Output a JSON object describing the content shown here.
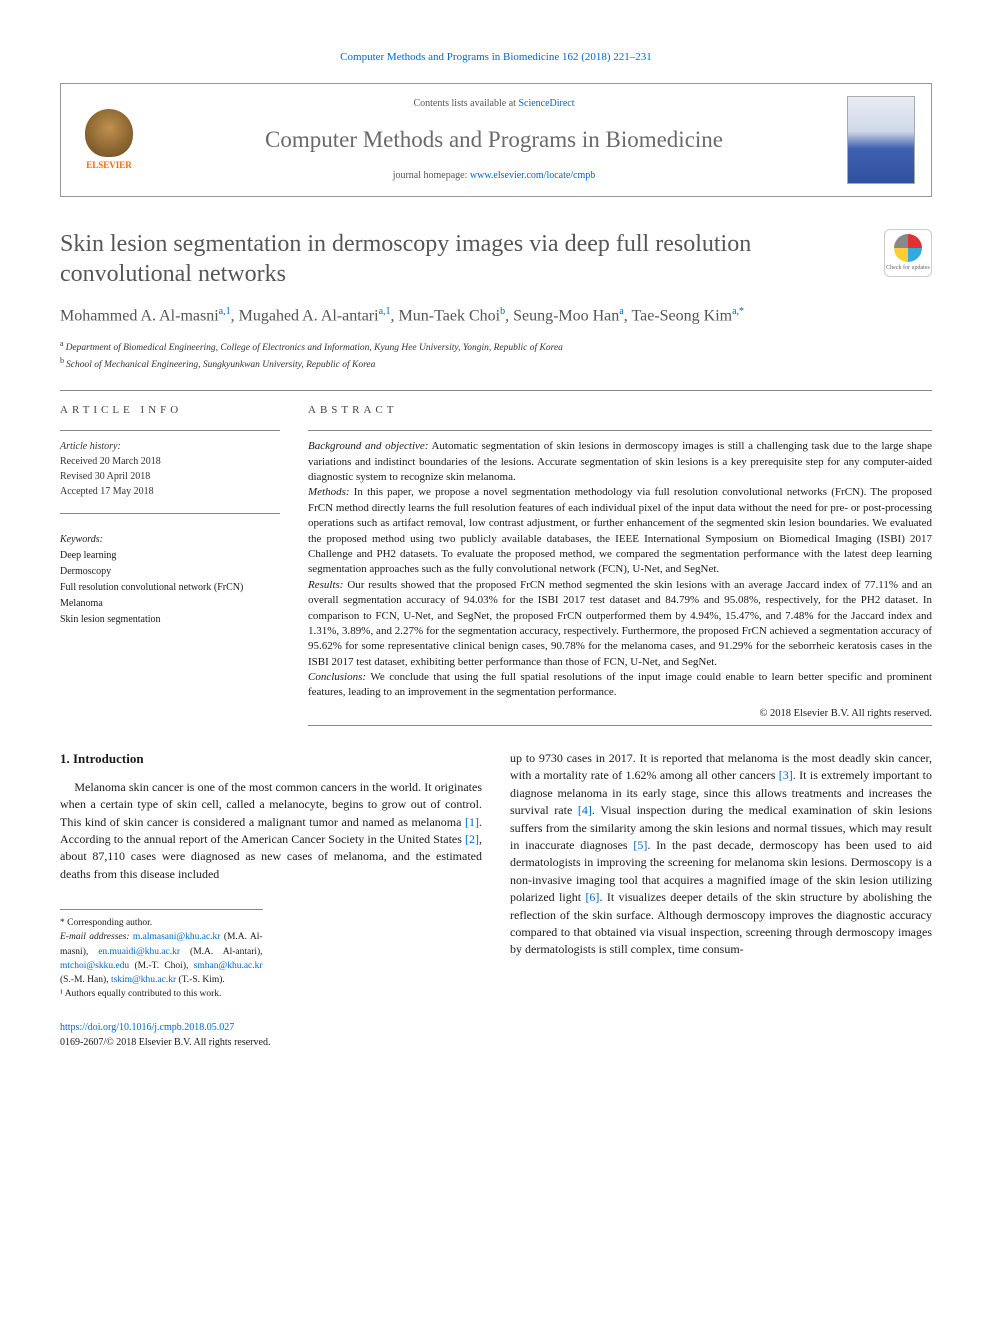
{
  "journal_ref": "Computer Methods and Programs in Biomedicine 162 (2018) 221–231",
  "header": {
    "contents_prefix": "Contents lists available at ",
    "contents_link": "ScienceDirect",
    "journal_name": "Computer Methods and Programs in Biomedicine",
    "homepage_prefix": "journal homepage: ",
    "homepage_link": "www.elsevier.com/locate/cmpb",
    "elsevier_label": "ELSEVIER"
  },
  "title": "Skin lesion segmentation in dermoscopy images via deep full resolution convolutional networks",
  "crossmark_label": "Check for updates",
  "authors_html": "Mohammed A. Al-masni|a,1|, Mugahed A. Al-antari|a,1|, Mun-Taek Choi|b|, Seung-Moo Han|a|, Tae-Seong Kim|a,*|",
  "authors": [
    {
      "name": "Mohammed A. Al-masni",
      "sup": "a,1"
    },
    {
      "name": "Mugahed A. Al-antari",
      "sup": "a,1"
    },
    {
      "name": "Mun-Taek Choi",
      "sup": "b"
    },
    {
      "name": "Seung-Moo Han",
      "sup": "a"
    },
    {
      "name": "Tae-Seong Kim",
      "sup": "a,*"
    }
  ],
  "affiliations": [
    {
      "sup": "a",
      "text": "Department of Biomedical Engineering, College of Electronics and Information, Kyung Hee University, Yongin, Republic of Korea"
    },
    {
      "sup": "b",
      "text": "School of Mechanical Engineering, Sungkyunkwan University, Republic of Korea"
    }
  ],
  "article_info": {
    "header": "ARTICLE INFO",
    "history_label": "Article history:",
    "received": "Received 20 March 2018",
    "revised": "Revised 30 April 2018",
    "accepted": "Accepted 17 May 2018",
    "keywords_label": "Keywords:",
    "keywords": [
      "Deep learning",
      "Dermoscopy",
      "Full resolution convolutional network (FrCN)",
      "Melanoma",
      "Skin lesion segmentation"
    ]
  },
  "abstract": {
    "header": "ABSTRACT",
    "background_label": "Background and objective:",
    "background": "Automatic segmentation of skin lesions in dermoscopy images is still a challenging task due to the large shape variations and indistinct boundaries of the lesions. Accurate segmentation of skin lesions is a key prerequisite step for any computer-aided diagnostic system to recognize skin melanoma.",
    "methods_label": "Methods:",
    "methods": "In this paper, we propose a novel segmentation methodology via full resolution convolutional networks (FrCN). The proposed FrCN method directly learns the full resolution features of each individual pixel of the input data without the need for pre- or post-processing operations such as artifact removal, low contrast adjustment, or further enhancement of the segmented skin lesion boundaries. We evaluated the proposed method using two publicly available databases, the IEEE International Symposium on Biomedical Imaging (ISBI) 2017 Challenge and PH2 datasets. To evaluate the proposed method, we compared the segmentation performance with the latest deep learning segmentation approaches such as the fully convolutional network (FCN), U-Net, and SegNet.",
    "results_label": "Results:",
    "results": "Our results showed that the proposed FrCN method segmented the skin lesions with an average Jaccard index of 77.11% and an overall segmentation accuracy of 94.03% for the ISBI 2017 test dataset and 84.79% and 95.08%, respectively, for the PH2 dataset. In comparison to FCN, U-Net, and SegNet, the proposed FrCN outperformed them by 4.94%, 15.47%, and 7.48% for the Jaccard index and 1.31%, 3.89%, and 2.27% for the segmentation accuracy, respectively. Furthermore, the proposed FrCN achieved a segmentation accuracy of 95.62% for some representative clinical benign cases, 90.78% for the melanoma cases, and 91.29% for the seborrheic keratosis cases in the ISBI 2017 test dataset, exhibiting better performance than those of FCN, U-Net, and SegNet.",
    "conclusions_label": "Conclusions:",
    "conclusions": "We conclude that using the full spatial resolutions of the input image could enable to learn better specific and prominent features, leading to an improvement in the segmentation performance.",
    "copyright": "© 2018 Elsevier B.V. All rights reserved."
  },
  "intro": {
    "heading": "1. Introduction",
    "col1": "Melanoma skin cancer is one of the most common cancers in the world. It originates when a certain type of skin cell, called a melanocyte, begins to grow out of control. This kind of skin cancer is considered a malignant tumor and named as melanoma [1]. According to the annual report of the American Cancer Society in the United States [2], about 87,110 cases were diagnosed as new cases of melanoma, and the estimated deaths from this disease included",
    "col2": "up to 9730 cases in 2017. It is reported that melanoma is the most deadly skin cancer, with a mortality rate of 1.62% among all other cancers [3]. It is extremely important to diagnose melanoma in its early stage, since this allows treatments and increases the survival rate [4]. Visual inspection during the medical examination of skin lesions suffers from the similarity among the skin lesions and normal tissues, which may result in inaccurate diagnoses [5]. In the past decade, dermoscopy has been used to aid dermatologists in improving the screening for melanoma skin lesions. Dermoscopy is a non-invasive imaging tool that acquires a magnified image of the skin lesion utilizing polarized light [6]. It visualizes deeper details of the skin structure by abolishing the reflection of the skin surface. Although dermoscopy improves the diagnostic accuracy compared to that obtained via visual inspection, screening through dermoscopy images by dermatologists is still complex, time consum-"
  },
  "footnotes": {
    "corr": "* Corresponding author.",
    "emails_label": "E-mail addresses:",
    "emails": [
      {
        "addr": "m.almasani@khu.ac.kr",
        "who": "(M.A. Al-masni)"
      },
      {
        "addr": "en.muaidi@khu.ac.kr",
        "who": "(M.A. Al-antari)"
      },
      {
        "addr": "mtchoi@skku.edu",
        "who": "(M.-T. Choi)"
      },
      {
        "addr": "smhan@khu.ac.kr",
        "who": "(S.-M. Han)"
      },
      {
        "addr": "tskim@khu.ac.kr",
        "who": "(T.-S. Kim)"
      }
    ],
    "equal": "¹ Authors equally contributed to this work."
  },
  "doi": {
    "link": "https://doi.org/10.1016/j.cmpb.2018.05.027",
    "issn": "0169-2607/© 2018 Elsevier B.V. All rights reserved."
  },
  "refs": {
    "r1": "[1]",
    "r2": "[2]",
    "r3": "[3]",
    "r4": "[4]",
    "r5": "[5]",
    "r6": "[6]"
  }
}
